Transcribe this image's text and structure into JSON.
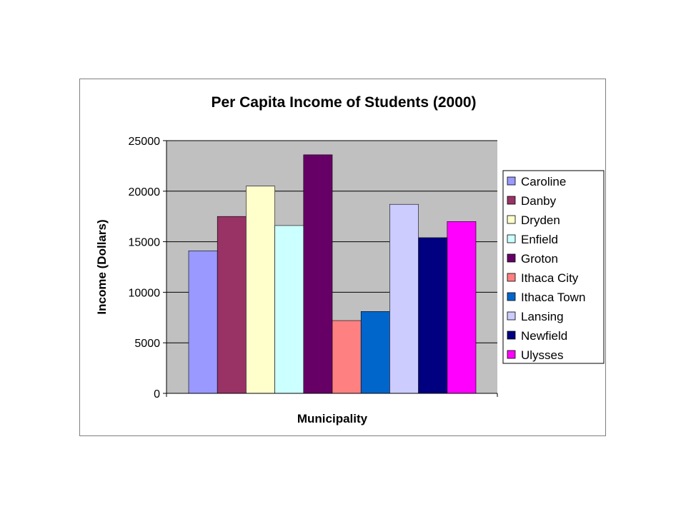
{
  "chart_data": {
    "type": "bar",
    "title": "Per Capita Income of Students (2000)",
    "xlabel": "Municipality",
    "ylabel": "Income (Dollars)",
    "ylim": [
      0,
      25000
    ],
    "yticks": [
      "0",
      "5000",
      "10000",
      "15000",
      "20000",
      "25000"
    ],
    "grid": true,
    "plot_background": "#c0c0c0",
    "legend_position": "right",
    "categories": [
      "Caroline",
      "Danby",
      "Dryden",
      "Enfield",
      "Groton",
      "Ithaca City",
      "Ithaca Town",
      "Lansing",
      "Newfield",
      "Ulysses"
    ],
    "values": [
      14100,
      17500,
      20500,
      16600,
      23600,
      7200,
      8100,
      18700,
      15400,
      17000
    ],
    "colors": [
      "#9999ff",
      "#993366",
      "#ffffcc",
      "#ccffff",
      "#660066",
      "#ff8080",
      "#0066cc",
      "#ccccff",
      "#000080",
      "#ff00ff"
    ]
  }
}
